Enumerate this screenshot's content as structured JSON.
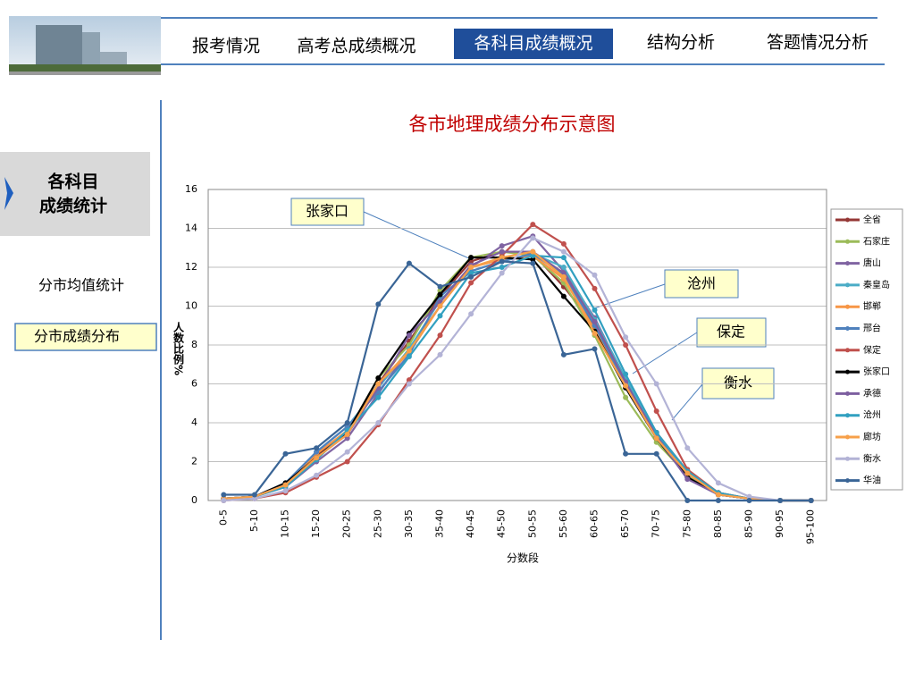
{
  "nav": [
    "报考情况",
    "高考总成绩概况",
    "各科目成绩概况",
    "结构分析",
    "答题情况分析"
  ],
  "sidebar": {
    "section": [
      "各科目",
      "成绩统计"
    ],
    "items": [
      "分市均值统计",
      "分市成绩分布"
    ]
  },
  "chart_data": {
    "type": "line",
    "title": "各市地理成绩分布示意图",
    "y_label": "人数比例%",
    "x_label": "分数段",
    "ylim": [
      0,
      16
    ],
    "yticks": [
      0,
      2,
      4,
      6,
      8,
      10,
      12,
      14,
      16
    ],
    "grid": true,
    "legend": "right",
    "annotations": [
      "张家口",
      "沧州",
      "保定",
      "衡水"
    ],
    "categories": [
      "0-5",
      "5-10",
      "10-15",
      "15-20",
      "20-25",
      "25-30",
      "30-35",
      "35-40",
      "40-45",
      "45-50",
      "50-55",
      "55-60",
      "60-65",
      "65-70",
      "70-75",
      "75-80",
      "80-85",
      "85-90",
      "90-95",
      "95-100"
    ],
    "series": [
      {
        "name": "全省",
        "color": "#953735",
        "values": [
          0.1,
          0.2,
          0.8,
          2.3,
          3.5,
          6.0,
          8.2,
          10.5,
          12.3,
          12.8,
          12.7,
          11.0,
          9.0,
          6.0,
          3.5,
          1.5,
          0.4,
          0.1,
          0,
          0
        ]
      },
      {
        "name": "石家庄",
        "color": "#9bbb59",
        "values": [
          0.1,
          0.2,
          0.8,
          2.2,
          3.5,
          6.3,
          8.0,
          10.8,
          12.5,
          12.8,
          12.6,
          11.2,
          8.5,
          5.3,
          3.0,
          1.3,
          0.3,
          0.1,
          0,
          0
        ]
      },
      {
        "name": "唐山",
        "color": "#8064a2",
        "values": [
          0.1,
          0.2,
          0.7,
          2.0,
          3.2,
          5.5,
          7.8,
          10.0,
          12.0,
          13.1,
          13.6,
          11.8,
          9.4,
          6.2,
          3.3,
          1.2,
          0.3,
          0.1,
          0,
          0
        ]
      },
      {
        "name": "秦皇岛",
        "color": "#4bacc6",
        "values": [
          0.1,
          0.2,
          0.9,
          2.5,
          3.8,
          5.8,
          7.8,
          10.3,
          11.8,
          12.3,
          12.7,
          12.0,
          9.3,
          6.3,
          3.4,
          1.4,
          0.3,
          0.1,
          0,
          0
        ]
      },
      {
        "name": "邯郸",
        "color": "#f79646",
        "values": [
          0.1,
          0.2,
          0.8,
          2.4,
          3.6,
          6.0,
          7.6,
          10.0,
          12.0,
          12.4,
          12.6,
          11.4,
          8.8,
          6.0,
          3.3,
          1.4,
          0.4,
          0.1,
          0,
          0
        ]
      },
      {
        "name": "邢台",
        "color": "#4f81bd",
        "values": [
          0.1,
          0.2,
          0.9,
          2.5,
          3.8,
          5.6,
          7.5,
          10.5,
          11.8,
          12.3,
          12.7,
          11.6,
          9.0,
          6.0,
          3.4,
          1.4,
          0.3,
          0.1,
          0,
          0
        ]
      },
      {
        "name": "保定",
        "color": "#c0504d",
        "values": [
          0.0,
          0.1,
          0.4,
          1.2,
          2.0,
          3.9,
          6.2,
          8.5,
          11.2,
          12.6,
          14.2,
          13.2,
          10.9,
          8.0,
          4.6,
          1.6,
          0.4,
          0.1,
          0,
          0
        ]
      },
      {
        "name": "张家口",
        "color": "#000000",
        "values": [
          0.1,
          0.2,
          0.9,
          2.2,
          3.5,
          6.3,
          8.6,
          10.6,
          12.5,
          12.5,
          12.4,
          10.5,
          8.7,
          5.8,
          3.2,
          1.2,
          0.3,
          0.1,
          0,
          0
        ]
      },
      {
        "name": "承德",
        "color": "#7d5fa0",
        "values": [
          0.1,
          0.2,
          0.8,
          2.2,
          3.4,
          5.8,
          8.5,
          10.2,
          12.1,
          12.8,
          12.8,
          11.7,
          9.2,
          6.1,
          3.3,
          1.1,
          0.3,
          0.1,
          0,
          0
        ]
      },
      {
        "name": "沧州",
        "color": "#31a0c0",
        "values": [
          0.1,
          0.2,
          0.7,
          2.1,
          3.6,
          5.3,
          7.4,
          9.5,
          11.7,
          12.0,
          12.6,
          12.5,
          9.8,
          6.5,
          3.5,
          1.5,
          0.4,
          0.1,
          0,
          0
        ]
      },
      {
        "name": "廊坊",
        "color": "#f7a04a",
        "values": [
          0.1,
          0.2,
          0.8,
          2.2,
          3.4,
          6.0,
          7.7,
          10.0,
          12.0,
          12.5,
          12.8,
          11.5,
          8.6,
          5.9,
          3.2,
          1.4,
          0.3,
          0.1,
          0,
          0
        ]
      },
      {
        "name": "衡水",
        "color": "#b3b3d6",
        "values": [
          0.0,
          0.1,
          0.5,
          1.3,
          2.5,
          4.0,
          6.0,
          7.5,
          9.6,
          11.7,
          13.5,
          12.8,
          11.6,
          8.4,
          6.0,
          2.7,
          0.9,
          0.2,
          0,
          0
        ]
      },
      {
        "name": "华油",
        "color": "#3a6596",
        "values": [
          0.3,
          0.3,
          2.4,
          2.7,
          4.0,
          10.1,
          12.2,
          11.0,
          11.5,
          12.3,
          12.2,
          7.5,
          7.8,
          2.4,
          2.4,
          0,
          0,
          0,
          0,
          0
        ]
      }
    ]
  }
}
